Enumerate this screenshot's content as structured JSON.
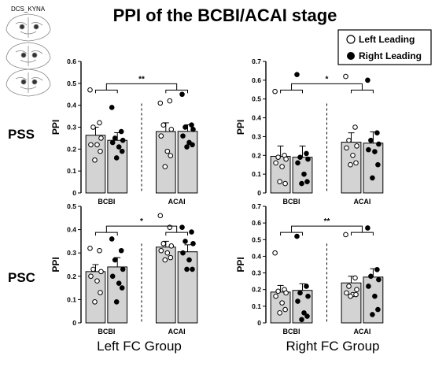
{
  "figure": {
    "title": "PPI of the BCBI/ACAI stage",
    "inset_label": "DCS_KYNA",
    "row_labels": [
      "PSS",
      "PSC"
    ],
    "col_labels": [
      "Left FC Group",
      "Right FC Group"
    ],
    "legend": {
      "position": "top-right",
      "items": [
        "Left Leading",
        "Right Leading"
      ]
    },
    "colors": {
      "bar_fill": "#d3d3d3",
      "bar_edge": "#000000",
      "left_marker": "#ffffff",
      "right_marker": "#000000"
    }
  },
  "chart_data": [
    {
      "type": "bar",
      "panel": "PSS / Left FC Group",
      "ylabel": "PPI",
      "ylim": [
        0,
        0.6
      ],
      "yticks": [
        "0",
        "0.1",
        "0.2",
        "0.3",
        "0.4",
        "0.5",
        "0.6"
      ],
      "categories": [
        "BCBI",
        "ACAI"
      ],
      "significance": "**",
      "series": [
        {
          "name": "Left Leading",
          "values": [
            0.263,
            0.28
          ],
          "errors": [
            0.037,
            0.04
          ],
          "points": [
            [
              0.47,
              0.32,
              0.3,
              0.25,
              0.22,
              0.22,
              0.19,
              0.15
            ],
            [
              0.41,
              0.42,
              0.31,
              0.29,
              0.26,
              0.19,
              0.17,
              0.12
            ]
          ]
        },
        {
          "name": "Right Leading",
          "values": [
            0.24,
            0.281
          ],
          "errors": [
            0.035,
            0.03
          ],
          "points": [
            [
              0.39,
              0.28,
              0.25,
              0.24,
              0.23,
              0.21,
              0.19,
              0.16
            ],
            [
              0.45,
              0.31,
              0.3,
              0.29,
              0.26,
              0.23,
              0.22,
              0.21
            ]
          ]
        }
      ]
    },
    {
      "type": "bar",
      "panel": "PSS / Right FC Group",
      "ylabel": "PPI",
      "ylim": [
        0,
        0.7
      ],
      "yticks": [
        "0",
        "0.1",
        "0.2",
        "0.3",
        "0.4",
        "0.5",
        "0.6",
        "0.7"
      ],
      "categories": [
        "BCBI",
        "ACAI"
      ],
      "significance": "*",
      "series": [
        {
          "name": "Left Leading",
          "values": [
            0.195,
            0.27
          ],
          "errors": [
            0.055,
            0.05
          ],
          "points": [
            [
              0.54,
              0.2,
              0.19,
              0.18,
              0.16,
              0.14,
              0.05,
              0.06
            ],
            [
              0.62,
              0.35,
              0.28,
              0.25,
              0.24,
              0.2,
              0.16,
              0.15
            ]
          ]
        },
        {
          "name": "Right Leading",
          "values": [
            0.19,
            0.265
          ],
          "errors": [
            0.06,
            0.06
          ],
          "points": [
            [
              0.63,
              0.21,
              0.19,
              0.18,
              0.16,
              0.1,
              0.06,
              0.05
            ],
            [
              0.6,
              0.32,
              0.28,
              0.26,
              0.23,
              0.22,
              0.15,
              0.08
            ]
          ]
        }
      ]
    },
    {
      "type": "bar",
      "panel": "PSC / Left FC Group",
      "ylabel": "PPI",
      "ylim": [
        0,
        0.5
      ],
      "yticks": [
        "0",
        "0.1",
        "0.2",
        "0.3",
        "0.4",
        "0.5"
      ],
      "categories": [
        "BCBI",
        "ACAI"
      ],
      "significance": "*",
      "series": [
        {
          "name": "Left Leading",
          "values": [
            0.22,
            0.325
          ],
          "errors": [
            0.03,
            0.025
          ],
          "points": [
            [
              0.32,
              0.31,
              0.23,
              0.22,
              0.2,
              0.18,
              0.13,
              0.09
            ],
            [
              0.46,
              0.41,
              0.34,
              0.33,
              0.31,
              0.3,
              0.28,
              0.27
            ]
          ]
        },
        {
          "name": "Right Leading",
          "values": [
            0.24,
            0.305
          ],
          "errors": [
            0.04,
            0.03
          ],
          "points": [
            [
              0.36,
              0.31,
              0.27,
              0.23,
              0.2,
              0.17,
              0.15,
              0.09
            ],
            [
              0.41,
              0.39,
              0.35,
              0.34,
              0.3,
              0.27,
              0.23,
              0.23
            ]
          ]
        }
      ]
    },
    {
      "type": "bar",
      "panel": "PSC / Right FC Group",
      "ylabel": "PPI",
      "ylim": [
        0,
        0.7
      ],
      "yticks": [
        "0",
        "0.1",
        "0.2",
        "0.3",
        "0.4",
        "0.5",
        "0.6",
        "0.7"
      ],
      "categories": [
        "BCBI",
        "ACAI"
      ],
      "significance": "**",
      "series": [
        {
          "name": "Left Leading",
          "values": [
            0.185,
            0.24
          ],
          "errors": [
            0.04,
            0.04
          ],
          "points": [
            [
              0.42,
              0.2,
              0.19,
              0.18,
              0.16,
              0.12,
              0.08,
              0.06
            ],
            [
              0.53,
              0.27,
              0.22,
              0.2,
              0.18,
              0.17,
              0.17,
              0.16
            ]
          ]
        },
        {
          "name": "Right Leading",
          "values": [
            0.195,
            0.275
          ],
          "errors": [
            0.04,
            0.05
          ],
          "points": [
            [
              0.52,
              0.22,
              0.18,
              0.16,
              0.13,
              0.06,
              0.04,
              0.02
            ],
            [
              0.57,
              0.32,
              0.28,
              0.26,
              0.22,
              0.16,
              0.08,
              0.05
            ]
          ]
        }
      ]
    }
  ]
}
